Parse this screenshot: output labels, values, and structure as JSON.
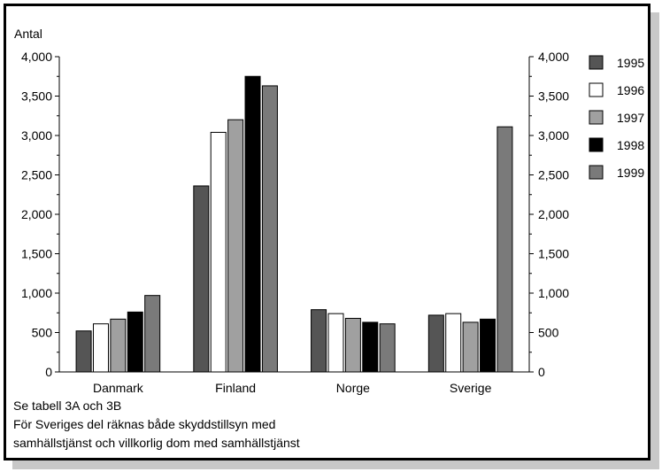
{
  "chart_data": {
    "type": "bar",
    "ylabel": "Antal",
    "categories": [
      "Danmark",
      "Finland",
      "Norge",
      "Sverige"
    ],
    "ylim": [
      0,
      4000
    ],
    "yticks": [
      "0",
      "500",
      "1,000",
      "1,500",
      "2,000",
      "2,500",
      "3,000",
      "3,500",
      "4,000"
    ],
    "ytick_values": [
      0,
      500,
      1000,
      1500,
      2000,
      2500,
      3000,
      3500,
      4000
    ],
    "grid": false,
    "legend_position": "right",
    "series": [
      {
        "name": "1995",
        "color": "#555555",
        "values": [
          520,
          2360,
          790,
          720
        ]
      },
      {
        "name": "1996",
        "color": "#ffffff",
        "values": [
          610,
          3040,
          740,
          740
        ]
      },
      {
        "name": "1997",
        "color": "#a0a0a0",
        "values": [
          670,
          3200,
          680,
          630
        ]
      },
      {
        "name": "1998",
        "color": "#000000",
        "values": [
          760,
          3750,
          630,
          670
        ]
      },
      {
        "name": "1999",
        "color": "#7a7a7a",
        "values": [
          970,
          3630,
          610,
          3110
        ]
      }
    ]
  },
  "notes": [
    "Se tabell 3A och 3B",
    "För Sveriges del räknas både skyddstillsyn med",
    "samhällstjänst och villkorlig dom med samhällstjänst"
  ]
}
